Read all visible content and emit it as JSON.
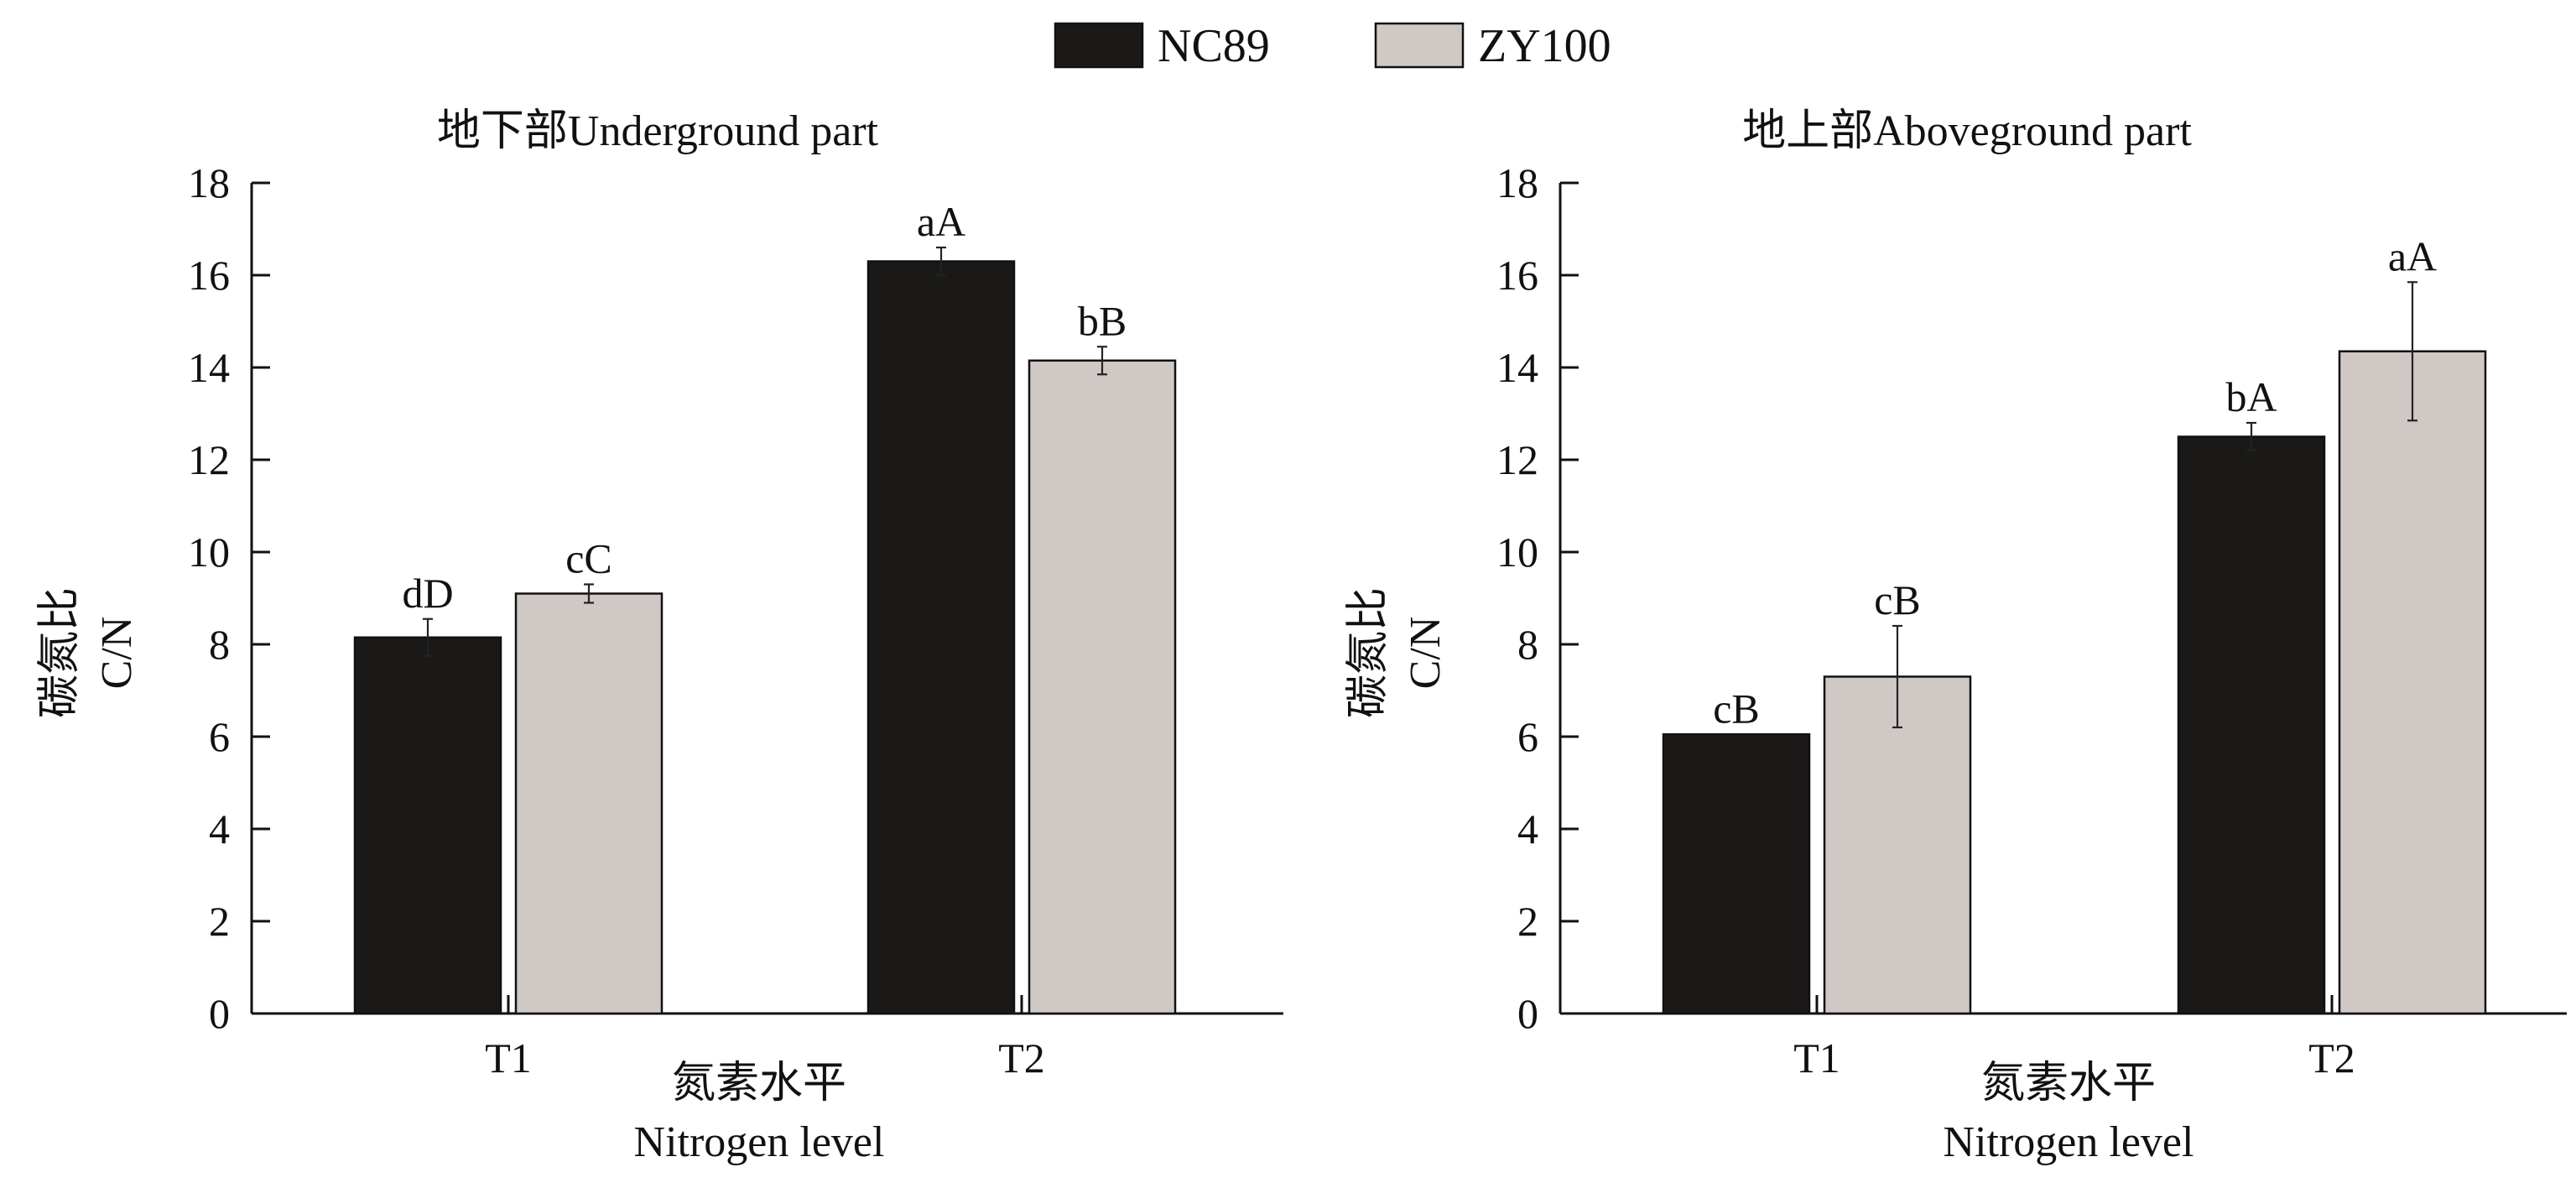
{
  "legend": [
    {
      "name": "NC89",
      "color": "#1b1918"
    },
    {
      "name": "ZY100",
      "color": "#cfc8c5"
    }
  ],
  "chart_data": [
    {
      "type": "bar",
      "title": "地下部Underground part",
      "ylabel_cn": "碳氮比",
      "ylabel_en": "C/N",
      "xlabel_cn": "氮素水平",
      "xlabel_en": "Nitrogen level",
      "ylim": [
        0,
        18
      ],
      "yticks": [
        0,
        2,
        4,
        6,
        8,
        10,
        12,
        14,
        16,
        18
      ],
      "categories": [
        "T1",
        "T2"
      ],
      "series": [
        {
          "name": "NC89",
          "values": [
            8.15,
            16.3
          ],
          "errors": [
            0.4,
            0.3
          ],
          "labels": [
            "dD",
            "aA"
          ]
        },
        {
          "name": "ZY100",
          "values": [
            9.1,
            14.15
          ],
          "errors": [
            0.2,
            0.3
          ],
          "labels": [
            "cC",
            "bB"
          ]
        }
      ]
    },
    {
      "type": "bar",
      "title": "地上部Aboveground part",
      "ylabel_cn": "碳氮比",
      "ylabel_en": "C/N",
      "xlabel_cn": "氮素水平",
      "xlabel_en": "Nitrogen level",
      "ylim": [
        0,
        18
      ],
      "yticks": [
        0,
        2,
        4,
        6,
        8,
        10,
        12,
        14,
        16,
        18
      ],
      "categories": [
        "T1",
        "T2"
      ],
      "series": [
        {
          "name": "NC89",
          "values": [
            6.05,
            12.5
          ],
          "errors": [
            0.0,
            0.3
          ],
          "labels": [
            "cB",
            "bA"
          ]
        },
        {
          "name": "ZY100",
          "values": [
            7.3,
            14.35
          ],
          "errors": [
            1.1,
            1.5
          ],
          "labels": [
            "cB",
            "aA"
          ]
        }
      ]
    }
  ]
}
